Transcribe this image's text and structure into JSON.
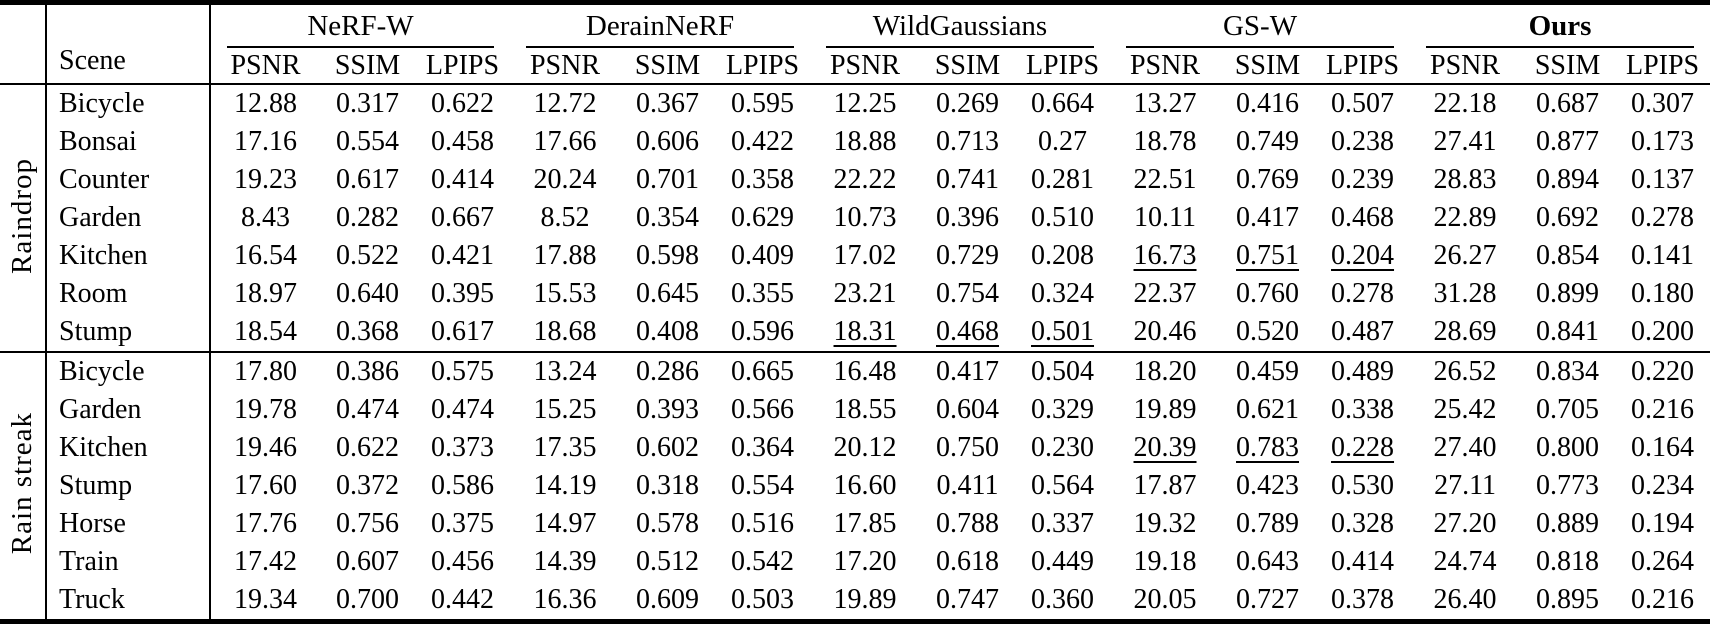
{
  "table": {
    "scene_header": "Scene",
    "metrics": [
      "PSNR",
      "SSIM",
      "LPIPS"
    ],
    "methods": [
      {
        "name": "NeRF-W",
        "bold": false
      },
      {
        "name": "DerainNeRF",
        "bold": false
      },
      {
        "name": "WildGaussians",
        "bold": false
      },
      {
        "name": "GS-W",
        "bold": false
      },
      {
        "name": "Ours",
        "bold": true
      }
    ],
    "text_color": "#000000",
    "background_color": "#ffffff",
    "groups": [
      {
        "label": "Raindrop",
        "rows": [
          {
            "scene": "Bicycle",
            "values": [
              "12.88",
              "0.317",
              "0.622",
              "12.72",
              "0.367",
              "0.595",
              "12.25",
              "0.269",
              "0.664",
              "13.27",
              "0.416",
              "0.507",
              "22.18",
              "0.687",
              "0.307"
            ],
            "underline": []
          },
          {
            "scene": "Bonsai",
            "values": [
              "17.16",
              "0.554",
              "0.458",
              "17.66",
              "0.606",
              "0.422",
              "18.88",
              "0.713",
              "0.27",
              "18.78",
              "0.749",
              "0.238",
              "27.41",
              "0.877",
              "0.173"
            ],
            "underline": []
          },
          {
            "scene": "Counter",
            "values": [
              "19.23",
              "0.617",
              "0.414",
              "20.24",
              "0.701",
              "0.358",
              "22.22",
              "0.741",
              "0.281",
              "22.51",
              "0.769",
              "0.239",
              "28.83",
              "0.894",
              "0.137"
            ],
            "underline": []
          },
          {
            "scene": "Garden",
            "values": [
              "8.43",
              "0.282",
              "0.667",
              "8.52",
              "0.354",
              "0.629",
              "10.73",
              "0.396",
              "0.510",
              "10.11",
              "0.417",
              "0.468",
              "22.89",
              "0.692",
              "0.278"
            ],
            "underline": []
          },
          {
            "scene": "Kitchen",
            "values": [
              "16.54",
              "0.522",
              "0.421",
              "17.88",
              "0.598",
              "0.409",
              "17.02",
              "0.729",
              "0.208",
              "16.73",
              "0.751",
              "0.204",
              "26.27",
              "0.854",
              "0.141"
            ],
            "underline": [
              9,
              10,
              11
            ]
          },
          {
            "scene": "Room",
            "values": [
              "18.97",
              "0.640",
              "0.395",
              "15.53",
              "0.645",
              "0.355",
              "23.21",
              "0.754",
              "0.324",
              "22.37",
              "0.760",
              "0.278",
              "31.28",
              "0.899",
              "0.180"
            ],
            "underline": []
          },
          {
            "scene": "Stump",
            "values": [
              "18.54",
              "0.368",
              "0.617",
              "18.68",
              "0.408",
              "0.596",
              "18.31",
              "0.468",
              "0.501",
              "20.46",
              "0.520",
              "0.487",
              "28.69",
              "0.841",
              "0.200"
            ],
            "underline": [
              6,
              7,
              8
            ]
          }
        ]
      },
      {
        "label": "Rain streak",
        "rows": [
          {
            "scene": "Bicycle",
            "values": [
              "17.80",
              "0.386",
              "0.575",
              "13.24",
              "0.286",
              "0.665",
              "16.48",
              "0.417",
              "0.504",
              "18.20",
              "0.459",
              "0.489",
              "26.52",
              "0.834",
              "0.220"
            ],
            "underline": []
          },
          {
            "scene": "Garden",
            "values": [
              "19.78",
              "0.474",
              "0.474",
              "15.25",
              "0.393",
              "0.566",
              "18.55",
              "0.604",
              "0.329",
              "19.89",
              "0.621",
              "0.338",
              "25.42",
              "0.705",
              "0.216"
            ],
            "underline": []
          },
          {
            "scene": "Kitchen",
            "values": [
              "19.46",
              "0.622",
              "0.373",
              "17.35",
              "0.602",
              "0.364",
              "20.12",
              "0.750",
              "0.230",
              "20.39",
              "0.783",
              "0.228",
              "27.40",
              "0.800",
              "0.164"
            ],
            "underline": [
              9,
              10,
              11
            ]
          },
          {
            "scene": "Stump",
            "values": [
              "17.60",
              "0.372",
              "0.586",
              "14.19",
              "0.318",
              "0.554",
              "16.60",
              "0.411",
              "0.564",
              "17.87",
              "0.423",
              "0.530",
              "27.11",
              "0.773",
              "0.234"
            ],
            "underline": []
          },
          {
            "scene": "Horse",
            "values": [
              "17.76",
              "0.756",
              "0.375",
              "14.97",
              "0.578",
              "0.516",
              "17.85",
              "0.788",
              "0.337",
              "19.32",
              "0.789",
              "0.328",
              "27.20",
              "0.889",
              "0.194"
            ],
            "underline": []
          },
          {
            "scene": "Train",
            "values": [
              "17.42",
              "0.607",
              "0.456",
              "14.39",
              "0.512",
              "0.542",
              "17.20",
              "0.618",
              "0.449",
              "19.18",
              "0.643",
              "0.414",
              "24.74",
              "0.818",
              "0.264"
            ],
            "underline": []
          },
          {
            "scene": "Truck",
            "values": [
              "19.34",
              "0.700",
              "0.442",
              "16.36",
              "0.609",
              "0.503",
              "19.89",
              "0.747",
              "0.360",
              "20.05",
              "0.727",
              "0.378",
              "26.40",
              "0.895",
              "0.216"
            ],
            "underline": []
          }
        ]
      }
    ]
  }
}
